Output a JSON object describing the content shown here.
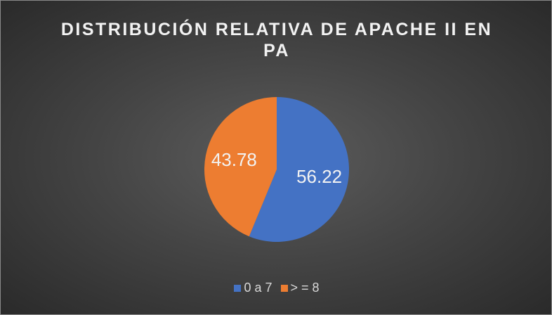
{
  "chart_data": {
    "type": "pie",
    "title": "DISTRIBUCIÓN RELATIVA DE APACHE II EN PA",
    "categories": [
      "0 a 7",
      "> = 8"
    ],
    "values": [
      56.22,
      43.78
    ],
    "colors": [
      "#4472c4",
      "#ed7d31"
    ],
    "legend": "bottom"
  }
}
